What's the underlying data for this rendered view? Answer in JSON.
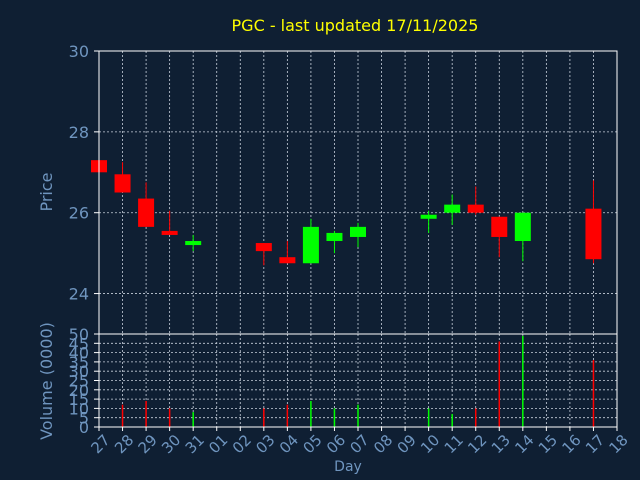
{
  "colors": {
    "background": "#0f1f33",
    "title": "#ffff00",
    "axis_text": "#6f95bf",
    "frame": "#ffffff",
    "grid": "#c8d0dc",
    "up": "#00ff00",
    "down": "#ff0000"
  },
  "chart_data": [
    {
      "type": "candlestick",
      "title": "PGC - last updated 17/11/2025",
      "ylabel": "Price",
      "ylim": [
        23.0,
        30.0
      ],
      "yticks": [
        24,
        26,
        28,
        30
      ],
      "ytick_labels": [
        "24",
        "26",
        "28",
        "30"
      ],
      "grid": true,
      "x_categories": [
        "27",
        "28",
        "29",
        "30",
        "31",
        "01",
        "02",
        "03",
        "04",
        "05",
        "06",
        "07",
        "08",
        "09",
        "10",
        "11",
        "12",
        "13",
        "14",
        "15",
        "16",
        "17",
        "18"
      ],
      "candles": [
        {
          "day": "27",
          "open": 27.3,
          "high": 27.3,
          "low": 26.95,
          "close": 27.0
        },
        {
          "day": "28",
          "open": 26.95,
          "high": 27.25,
          "low": 26.5,
          "close": 26.5
        },
        {
          "day": "29",
          "open": 26.35,
          "high": 26.75,
          "low": 25.65,
          "close": 25.65
        },
        {
          "day": "30",
          "open": 25.55,
          "high": 26.05,
          "low": 25.45,
          "close": 25.45
        },
        {
          "day": "31",
          "open": 25.2,
          "high": 25.45,
          "low": 25.05,
          "close": 25.3
        },
        {
          "day": "03",
          "open": 25.25,
          "high": 25.25,
          "low": 24.7,
          "close": 25.05
        },
        {
          "day": "04",
          "open": 24.9,
          "high": 25.3,
          "low": 24.75,
          "close": 24.75
        },
        {
          "day": "05",
          "open": 24.75,
          "high": 25.85,
          "low": 24.75,
          "close": 25.65
        },
        {
          "day": "06",
          "open": 25.3,
          "high": 25.55,
          "low": 25.0,
          "close": 25.5
        },
        {
          "day": "07",
          "open": 25.4,
          "high": 25.75,
          "low": 25.15,
          "close": 25.65
        },
        {
          "day": "10",
          "open": 25.85,
          "high": 26.05,
          "low": 25.5,
          "close": 25.95
        },
        {
          "day": "11",
          "open": 26.0,
          "high": 26.45,
          "low": 25.7,
          "close": 26.2
        },
        {
          "day": "12",
          "open": 26.2,
          "high": 26.65,
          "low": 25.95,
          "close": 26.0
        },
        {
          "day": "13",
          "open": 25.9,
          "high": 25.9,
          "low": 24.9,
          "close": 25.4
        },
        {
          "day": "14",
          "open": 25.3,
          "high": 26.0,
          "low": 24.8,
          "close": 26.0
        },
        {
          "day": "17",
          "open": 26.1,
          "high": 26.8,
          "low": 24.75,
          "close": 24.85
        }
      ]
    },
    {
      "type": "bar",
      "xlabel": "Day",
      "ylabel": "Volume (0000)",
      "ylim": [
        0,
        50
      ],
      "yticks": [
        0,
        5,
        10,
        15,
        20,
        25,
        30,
        35,
        40,
        45,
        50
      ],
      "ytick_labels": [
        "0",
        "5",
        "10",
        "15",
        "20",
        "25",
        "30",
        "35",
        "40",
        "45",
        "50"
      ],
      "grid": true,
      "bars": [
        {
          "day": "28",
          "value": 12,
          "color": "down"
        },
        {
          "day": "29",
          "value": 14,
          "color": "down"
        },
        {
          "day": "30",
          "value": 10,
          "color": "down"
        },
        {
          "day": "31",
          "value": 8,
          "color": "up"
        },
        {
          "day": "03",
          "value": 10,
          "color": "down"
        },
        {
          "day": "04",
          "value": 12,
          "color": "down"
        },
        {
          "day": "05",
          "value": 14,
          "color": "up"
        },
        {
          "day": "06",
          "value": 10,
          "color": "up"
        },
        {
          "day": "07",
          "value": 12,
          "color": "up"
        },
        {
          "day": "10",
          "value": 10,
          "color": "up"
        },
        {
          "day": "11",
          "value": 7,
          "color": "up"
        },
        {
          "day": "12",
          "value": 10,
          "color": "down"
        },
        {
          "day": "13",
          "value": 46,
          "color": "down"
        },
        {
          "day": "14",
          "value": 49,
          "color": "up"
        },
        {
          "day": "17",
          "value": 36,
          "color": "down"
        }
      ]
    }
  ]
}
